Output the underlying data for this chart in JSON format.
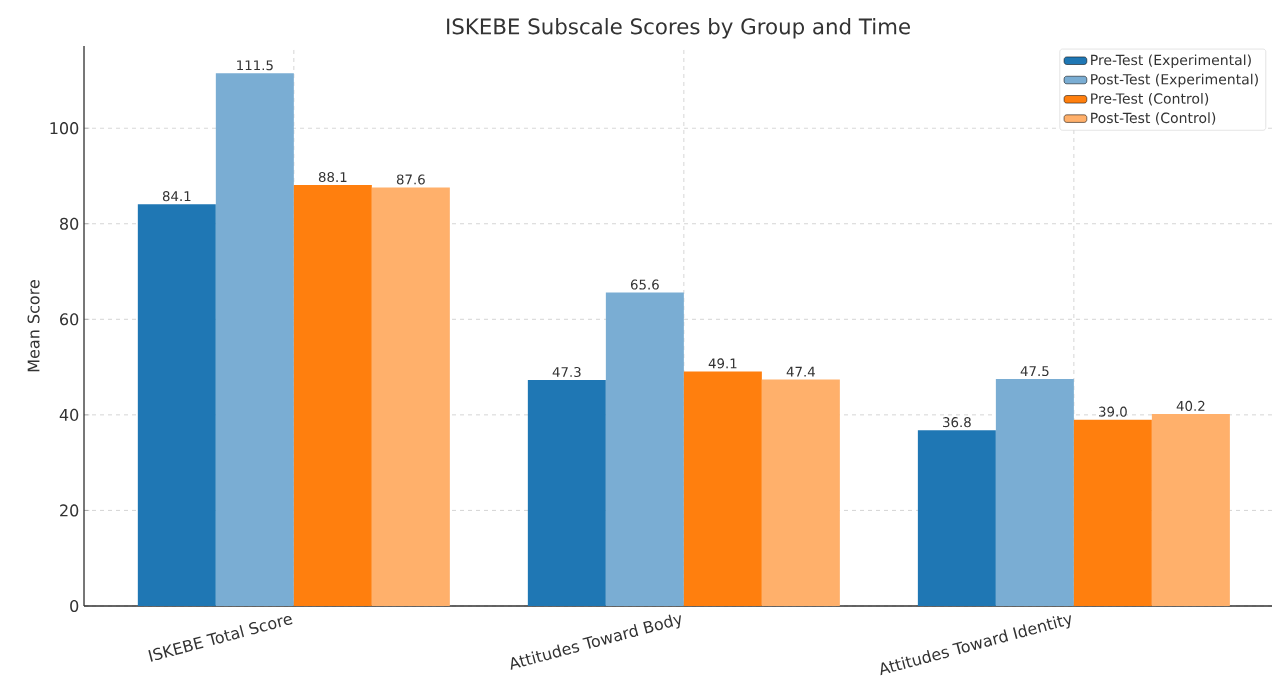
{
  "chart_data": {
    "type": "bar",
    "title": "ISKEBE Subscale Scores by Group and Time",
    "ylabel": "Mean Score",
    "categories": [
      "ISKEBE Total Score",
      "Attitudes Toward Body",
      "Attitudes Toward Identity"
    ],
    "series": [
      {
        "name": "Pre-Test (Experimental)",
        "color": "#1f77b4",
        "values": [
          84.1,
          47.3,
          36.8
        ],
        "value_labels": [
          "84.1",
          "47.3",
          "36.8"
        ]
      },
      {
        "name": "Post-Test (Experimental)",
        "color": "#7aadd3",
        "values": [
          111.5,
          65.6,
          47.5
        ],
        "value_labels": [
          "111.5",
          "65.6",
          "47.5"
        ]
      },
      {
        "name": "Pre-Test (Control)",
        "color": "#ff7f0e",
        "values": [
          88.1,
          49.1,
          39.0
        ],
        "value_labels": [
          "88.1",
          "49.1",
          "39.0"
        ]
      },
      {
        "name": "Post-Test (Control)",
        "color": "#ffb06b",
        "values": [
          87.6,
          47.4,
          40.2
        ],
        "value_labels": [
          "87.6",
          "47.4",
          "40.2"
        ]
      }
    ],
    "ylim": [
      0,
      117.2
    ],
    "yticks": [
      0,
      20,
      40,
      60,
      80,
      100
    ],
    "grid": true,
    "legend": "top right"
  }
}
